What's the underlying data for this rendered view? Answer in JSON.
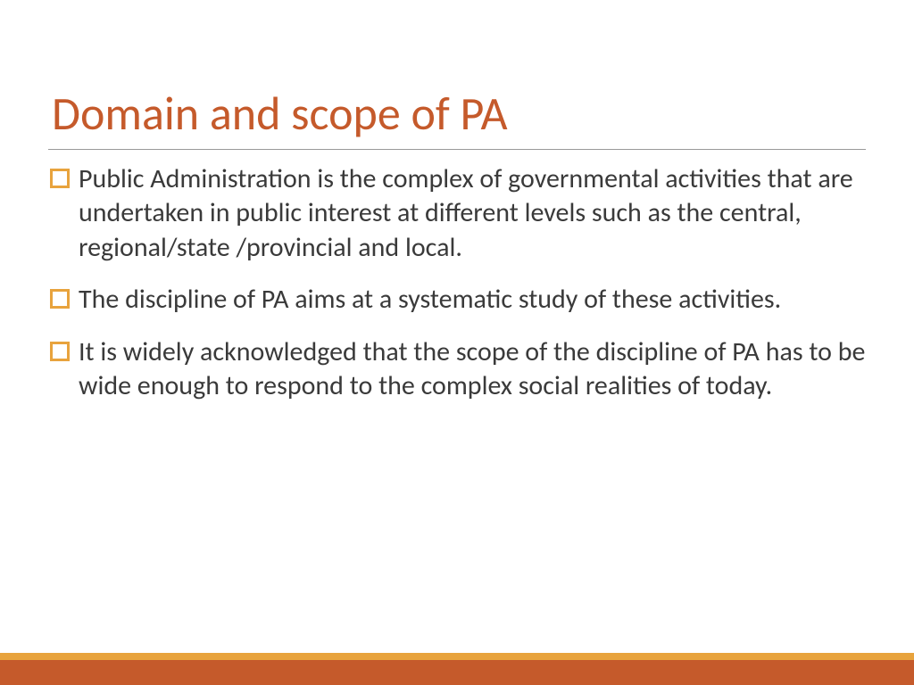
{
  "slide": {
    "title": "Domain and scope of PA",
    "title_color": "#c55a2b",
    "title_fontsize": 52,
    "body_color": "#3a3a3a",
    "body_fontsize": 30,
    "bullet_border_color": "#e8a33d",
    "underline_color": "#999999",
    "background_color": "#ffffff",
    "bullets": [
      "Public Administration is the complex of governmental activities that are undertaken in public interest at different levels such as the central, regional/state /provincial and local.",
      "The discipline of PA aims at a systematic study of these activities.",
      "It is widely acknowledged that the scope of the discipline of PA has to be wide enough to respond to the complex social realities of today."
    ],
    "footer": {
      "top_stripe_color": "#e8a33d",
      "top_stripe_height": 8,
      "bottom_stripe_color": "#c55a2b",
      "bottom_stripe_height": 28
    }
  }
}
